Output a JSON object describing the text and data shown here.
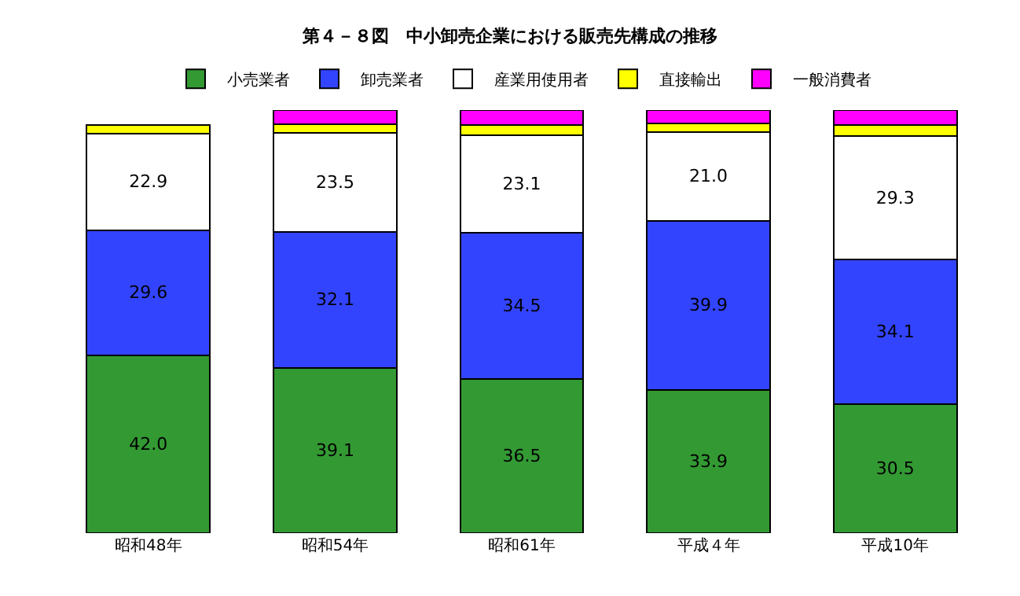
{
  "chart_data": {
    "type": "bar",
    "stacked": true,
    "title": "第４－８図　中小卸売企業における販売先構成の推移",
    "categories": [
      "昭和48年",
      "昭和54年",
      "昭和61年",
      "平成４年",
      "平成10年"
    ],
    "series": [
      {
        "name": "小売業者",
        "color": "#339933",
        "values": [
          42.0,
          39.1,
          36.5,
          33.9,
          30.5
        ],
        "value_labels": [
          "42.0",
          "39.1",
          "36.5",
          "33.9",
          "30.5"
        ]
      },
      {
        "name": "卸売業者",
        "color": "#3344ff",
        "values": [
          29.6,
          32.1,
          34.5,
          39.9,
          34.1
        ],
        "value_labels": [
          "29.6",
          "32.1",
          "34.5",
          "39.9",
          "34.1"
        ]
      },
      {
        "name": "産業用使用者",
        "color": "#ffffff",
        "values": [
          22.9,
          23.5,
          23.1,
          21.0,
          29.3
        ],
        "value_labels": [
          "22.9",
          "23.5",
          "23.1",
          "21.0",
          "29.3"
        ]
      },
      {
        "name": "直接輸出",
        "color": "#ffff00",
        "values": [
          2.0,
          2.0,
          2.4,
          2.0,
          2.6
        ]
      },
      {
        "name": "一般消費者",
        "color": "#ff00ff",
        "values": [
          null,
          3.3,
          3.5,
          3.2,
          3.5
        ]
      }
    ],
    "ylim": [
      0,
      100
    ],
    "tick_labels": "x",
    "legend": "top"
  }
}
